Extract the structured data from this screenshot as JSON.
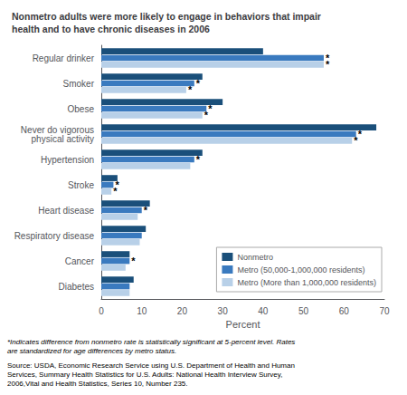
{
  "chart_data": {
    "type": "bar",
    "orientation": "horizontal",
    "title": "Nonmetro adults were more likely to engage in behaviors that impair\nhealth and to have chronic diseases in 2006",
    "categories": [
      "Diabetes",
      "Cancer",
      "Respiratory disease",
      "Heart disease",
      "Stroke",
      "Hypertension",
      "Never do vigorous\nphysical activity",
      "Obese",
      "Smoker",
      "Regular drinker"
    ],
    "series": [
      {
        "name": "Nonmetro",
        "color": "#1a4f7a",
        "values": [
          8,
          7,
          11,
          12,
          4,
          25,
          68,
          30,
          25,
          40
        ]
      },
      {
        "name": "Metro (50,000-1,000,000 residents)",
        "color": "#3a7abf",
        "values": [
          7,
          7,
          10,
          10,
          3,
          23,
          63,
          26,
          23,
          55
        ],
        "annotations": [
          null,
          "*",
          null,
          "*",
          "*",
          "*",
          "*",
          "*",
          "*",
          "*"
        ]
      },
      {
        "name": "Metro (More than 1,000,000 residents)",
        "color": "#b8d0e8",
        "values": [
          7,
          6,
          9.5,
          9,
          2.5,
          22,
          62,
          25,
          21,
          55
        ],
        "annotations": [
          null,
          null,
          null,
          null,
          "*",
          null,
          "*",
          "*",
          "*",
          "*"
        ]
      }
    ],
    "xlabel": "Percent",
    "xlim": [
      0,
      70
    ],
    "xticks": [
      0,
      10,
      20,
      30,
      40,
      50,
      60,
      70
    ],
    "grid": false,
    "legend": "lower right",
    "footnote": "*Indicates difference from nonmetro rate is statistically significant at 5-percent level. Rates\nare standardized for age differences by metro status.",
    "source": "Source: USDA, Economic Research Service using U.S. Department of Health and Human\nServices, Summary Health Statistics for U.S. Adults: National Health Interview Survey,\n2006,Vital and Health Statistics, Series 10, Number 235."
  }
}
